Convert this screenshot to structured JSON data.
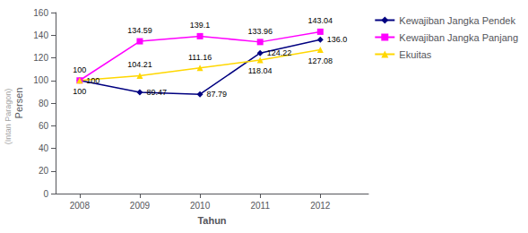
{
  "chart_data": {
    "type": "line",
    "x": [
      2008,
      2009,
      2010,
      2011,
      2012
    ],
    "xlabel": "Tahun",
    "ylabel": "Persen",
    "xlim": [
      2007.6,
      2012.8
    ],
    "xticks": [
      2008,
      2009,
      2010,
      2011,
      2012
    ],
    "ylim": [
      0,
      160
    ],
    "yticks": [
      0,
      20,
      40,
      60,
      80,
      100,
      120,
      140,
      160
    ],
    "grid": false,
    "legend": "right",
    "data_labels": true,
    "annotations": [
      {
        "text": "(Intan Paragon)"
      }
    ],
    "series": [
      {
        "name": "Kewajiban Jangka Pendek",
        "color": "#000080",
        "marker": "diamond",
        "values": [
          100,
          89.47,
          87.79,
          124.22,
          136.0
        ],
        "value_labels": [
          "100",
          "89.47",
          "87.79",
          "124.22",
          "136.0"
        ]
      },
      {
        "name": "Kewajiban Jangka Panjang",
        "color": "#FF00FF",
        "marker": "square",
        "values": [
          100,
          134.59,
          139.1,
          133.96,
          143.04
        ],
        "value_labels": [
          "100",
          "134.59",
          "139.1",
          "133.96",
          "143.04"
        ]
      },
      {
        "name": "Ekuitas",
        "color": "#FFD700",
        "marker": "triangle",
        "values": [
          100,
          104.21,
          111.16,
          118.04,
          127.08
        ],
        "value_labels": [
          "100",
          "104.21",
          "111.16",
          "118.04",
          "127.08"
        ]
      }
    ]
  }
}
